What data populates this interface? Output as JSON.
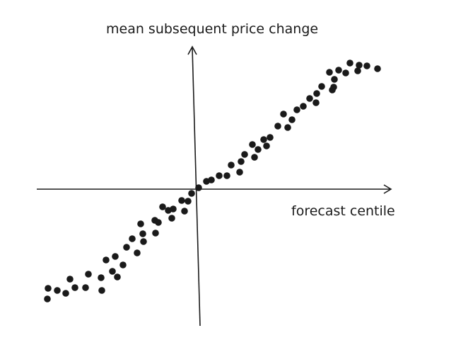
{
  "chart_data": {
    "type": "scatter",
    "title": "",
    "xlabel": "forecast centile",
    "ylabel": "mean subsequent price change",
    "xlim": [
      -2.28,
      2.73
    ],
    "ylim": [
      -1.93,
      1.99
    ],
    "grid": false,
    "legend": "none",
    "point_color": "#1a1a1a",
    "points": [
      [
        -2.13,
        -1.55
      ],
      [
        -2.12,
        -1.4
      ],
      [
        -1.99,
        -1.43
      ],
      [
        -1.87,
        -1.47
      ],
      [
        -1.74,
        -1.39
      ],
      [
        -1.81,
        -1.27
      ],
      [
        -1.59,
        -1.39
      ],
      [
        -1.55,
        -1.2
      ],
      [
        -1.37,
        -1.25
      ],
      [
        -1.36,
        -1.43
      ],
      [
        -1.3,
        -1.0
      ],
      [
        -1.17,
        -0.95
      ],
      [
        -1.21,
        -1.16
      ],
      [
        -1.14,
        -1.24
      ],
      [
        -1.06,
        -1.07
      ],
      [
        -1.01,
        -0.82
      ],
      [
        -0.93,
        -0.7
      ],
      [
        -0.86,
        -0.9
      ],
      [
        -0.81,
        -0.49
      ],
      [
        -0.78,
        -0.63
      ],
      [
        -0.77,
        -0.74
      ],
      [
        -0.61,
        -0.44
      ],
      [
        -0.56,
        -0.47
      ],
      [
        -0.6,
        -0.62
      ],
      [
        -0.5,
        -0.25
      ],
      [
        -0.42,
        -0.3
      ],
      [
        -0.35,
        -0.28
      ],
      [
        -0.37,
        -0.41
      ],
      [
        -0.23,
        -0.16
      ],
      [
        -0.14,
        -0.17
      ],
      [
        -0.19,
        -0.31
      ],
      [
        -0.09,
        -0.06
      ],
      [
        0.01,
        0.02
      ],
      [
        0.12,
        0.11
      ],
      [
        0.19,
        0.13
      ],
      [
        0.3,
        0.19
      ],
      [
        0.41,
        0.19
      ],
      [
        0.59,
        0.24
      ],
      [
        0.47,
        0.34
      ],
      [
        0.61,
        0.39
      ],
      [
        0.66,
        0.49
      ],
      [
        0.8,
        0.45
      ],
      [
        0.77,
        0.63
      ],
      [
        0.85,
        0.56
      ],
      [
        0.93,
        0.7
      ],
      [
        0.97,
        0.61
      ],
      [
        1.02,
        0.73
      ],
      [
        1.13,
        0.89
      ],
      [
        1.21,
        1.06
      ],
      [
        1.27,
        0.87
      ],
      [
        1.33,
        0.98
      ],
      [
        1.4,
        1.12
      ],
      [
        1.49,
        1.17
      ],
      [
        1.58,
        1.28
      ],
      [
        1.68,
        1.35
      ],
      [
        1.67,
        1.22
      ],
      [
        1.75,
        1.45
      ],
      [
        1.9,
        1.4
      ],
      [
        1.92,
        1.44
      ],
      [
        1.93,
        1.55
      ],
      [
        1.86,
        1.65
      ],
      [
        1.99,
        1.68
      ],
      [
        2.09,
        1.64
      ],
      [
        2.15,
        1.78
      ],
      [
        2.26,
        1.67
      ],
      [
        2.28,
        1.75
      ],
      [
        2.39,
        1.74
      ],
      [
        2.54,
        1.7
      ]
    ]
  }
}
